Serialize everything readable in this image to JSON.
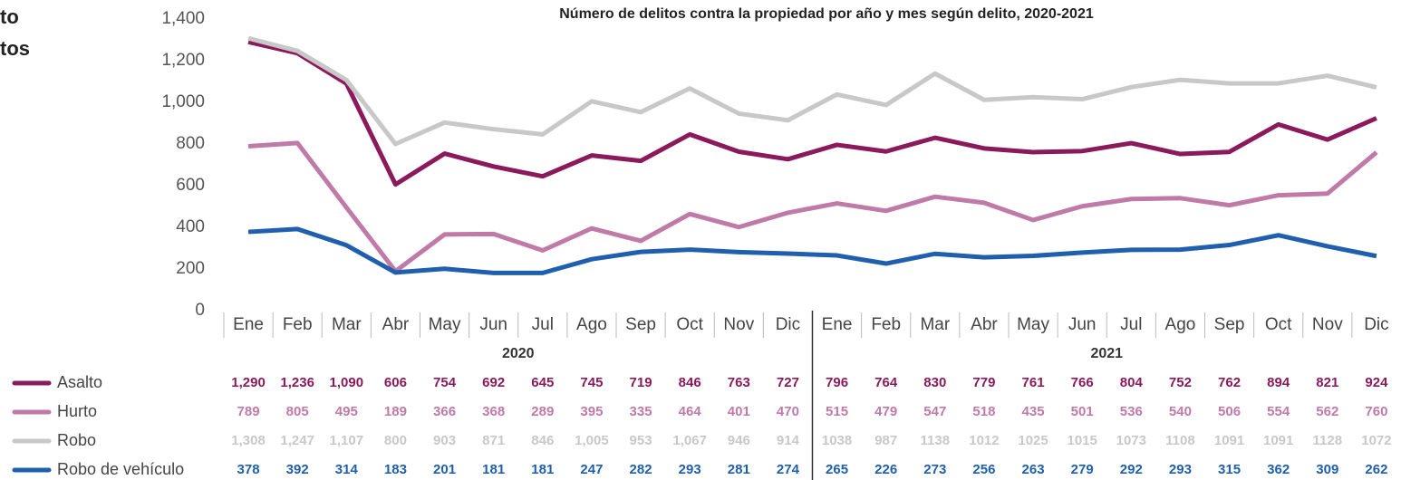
{
  "side_text": [
    "to",
    "tos"
  ],
  "chart_data": {
    "type": "line",
    "title": "Número de delitos contra la propiedad por año y mes según delito, 2020-2021",
    "categories": [
      "Ene",
      "Feb",
      "Mar",
      "Abr",
      "May",
      "Jun",
      "Jul",
      "Ago",
      "Sep",
      "Oct",
      "Nov",
      "Dic",
      "Ene",
      "Feb",
      "Mar",
      "Abr",
      "May",
      "Jun",
      "Jul",
      "Ago",
      "Sep",
      "Oct",
      "Nov",
      "Dic"
    ],
    "groups": [
      "2020",
      "2021"
    ],
    "ylim": [
      0,
      1400
    ],
    "yticks": [
      0,
      200,
      400,
      600,
      800,
      {
        "value": 1000,
        "label": "1,000"
      },
      {
        "value": 1200,
        "label": "1,200"
      },
      {
        "value": 1400,
        "label": "1,400"
      }
    ],
    "series": [
      {
        "name": "Asalto",
        "color": "#8b1a5c",
        "values": [
          1290,
          1236,
          1090,
          606,
          754,
          692,
          645,
          745,
          719,
          846,
          763,
          727,
          796,
          764,
          830,
          779,
          761,
          766,
          804,
          752,
          762,
          894,
          821,
          924
        ],
        "value_labels": [
          "1,290",
          "1,236",
          "1,090",
          "606",
          "754",
          "692",
          "645",
          "745",
          "719",
          "846",
          "763",
          "727",
          "796",
          "764",
          "830",
          "779",
          "761",
          "766",
          "804",
          "752",
          "762",
          "894",
          "821",
          "924"
        ]
      },
      {
        "name": "Hurto",
        "color": "#c07aa8",
        "values": [
          789,
          805,
          495,
          189,
          366,
          368,
          289,
          395,
          335,
          464,
          401,
          470,
          515,
          479,
          547,
          518,
          435,
          501,
          536,
          540,
          506,
          554,
          562,
          760
        ],
        "value_labels": [
          "789",
          "805",
          "495",
          "189",
          "366",
          "368",
          "289",
          "395",
          "335",
          "464",
          "401",
          "470",
          "515",
          "479",
          "547",
          "518",
          "435",
          "501",
          "536",
          "540",
          "506",
          "554",
          "562",
          "760"
        ]
      },
      {
        "name": "Robo",
        "color": "#c8c8c8",
        "values": [
          1308,
          1247,
          1107,
          800,
          903,
          871,
          846,
          1005,
          953,
          1067,
          946,
          914,
          1038,
          987,
          1138,
          1012,
          1025,
          1015,
          1073,
          1108,
          1091,
          1091,
          1128,
          1072
        ],
        "value_labels": [
          "1,308",
          "1,247",
          "1,107",
          "800",
          "903",
          "871",
          "846",
          "1,005",
          "953",
          "1,067",
          "946",
          "914",
          "1038",
          "987",
          "1138",
          "1012",
          "1025",
          "1015",
          "1073",
          "1108",
          "1091",
          "1091",
          "1128",
          "1072"
        ]
      },
      {
        "name": "Robo de vehículo",
        "color": "#1f5fad",
        "values": [
          378,
          392,
          314,
          183,
          201,
          181,
          181,
          247,
          282,
          293,
          281,
          274,
          265,
          226,
          273,
          256,
          263,
          279,
          292,
          293,
          315,
          362,
          309,
          262
        ],
        "value_labels": [
          "378",
          "392",
          "314",
          "183",
          "201",
          "181",
          "181",
          "247",
          "282",
          "293",
          "281",
          "274",
          "265",
          "226",
          "273",
          "256",
          "263",
          "279",
          "292",
          "293",
          "315",
          "362",
          "309",
          "262"
        ]
      }
    ]
  }
}
